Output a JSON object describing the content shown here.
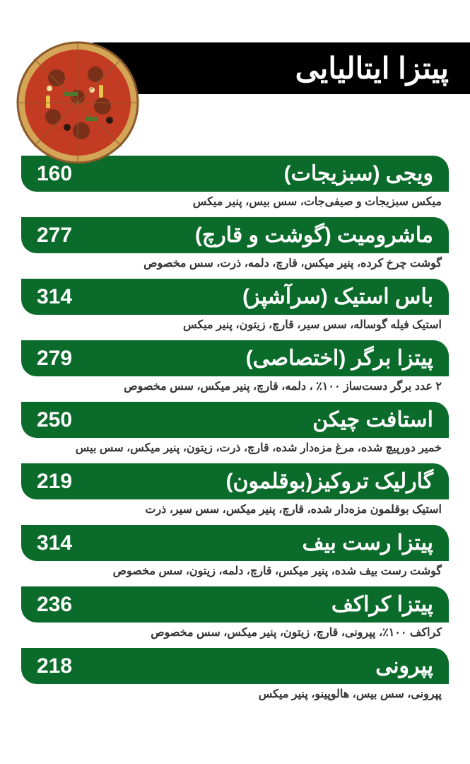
{
  "header": {
    "title": "پیتزا ایتالیایی"
  },
  "colors": {
    "bar_bg": "#0a6b2a",
    "bar_text": "#ffffff",
    "title_bg": "#000000",
    "title_text": "#ffffff",
    "desc_text": "#333333",
    "page_bg": "#ffffff"
  },
  "typography": {
    "title_fontsize": 42,
    "item_fontsize": 30,
    "desc_fontsize": 16
  },
  "items": [
    {
      "name": "ویجی (سبزیجات)",
      "price": "160",
      "desc": "میکس سبزیجات و صیفی‌جات، سس بیس، پنیر میکس"
    },
    {
      "name": "ماشرومیت (گوشت و قارچ)",
      "price": "277",
      "desc": "گوشت چرخ کرده، پنیر میکس، قارچ، دلمه، ذرت، سس مخصوص"
    },
    {
      "name": "باس استیک (سرآشپز)",
      "price": "314",
      "desc": "استیک فیله گوساله، سس سیر، قارچ، زیتون، پنیر میکس"
    },
    {
      "name": "پیتزا برگر (اختصاصی)",
      "price": "279",
      "desc": "۲ عدد برگر دست‌ساز ۱۰۰٪ ، دلمه، قارچ، پنیر میکس، سس مخصوص"
    },
    {
      "name": "استافت چیکن",
      "price": "250",
      "desc": "خمیر دورپیچ شده، مرغ مزه‌دار شده، قارچ، ذرت، زیتون، پنیر میکس، سس بیس"
    },
    {
      "name": "گارلیک تروکیز(بوقلمون)",
      "price": "219",
      "desc": "استیک بوقلمون مزه‌دار شده، قارچ، پنیر میکس، سس سیر، ذرت"
    },
    {
      "name": "پیتزا رست بیف",
      "price": "314",
      "desc": "گوشت رست بیف شده، پنیر میکس، قارچ، دلمه، زیتون، سس مخصوص"
    },
    {
      "name": "پیتزا کراکف",
      "price": "236",
      "desc": "کراکف ۱۰۰٪، پپرونی، قارچ، زیتون، پنیر میکس، سس مخصوص"
    },
    {
      "name": "پپرونی",
      "price": "218",
      "desc": "پپرونی، سس بیس، هالوپینو، پنیر میکس"
    }
  ]
}
